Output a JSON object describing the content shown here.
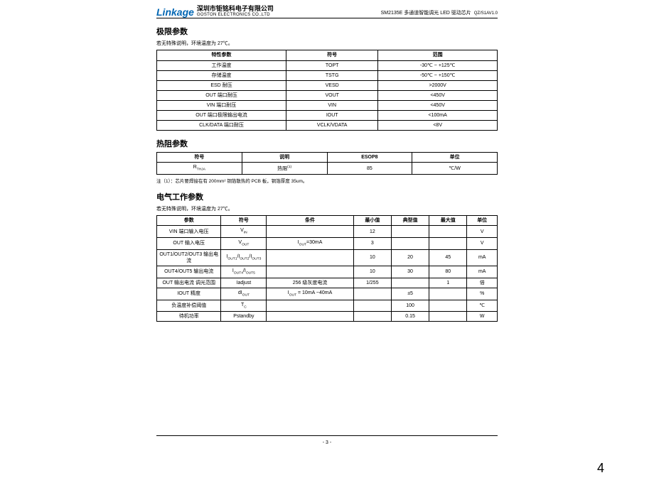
{
  "header": {
    "logo": "Linkage",
    "company_cn": "深圳市钜铭科电子有限公司",
    "company_en": "GOSTON ELECTRONICS CO.,LTD",
    "product": "SM2135E 多通道智能调光 LED 驱动芯片",
    "docno": "QZ/S1AV1.0"
  },
  "section1": {
    "title": "极限参数",
    "note": "若无特殊说明，环境温度为 27℃。",
    "headers": [
      "特性参数",
      "符号",
      "范围"
    ],
    "rows": [
      [
        "工作温度",
        "TOPT",
        "-30℃ ~ +125℃"
      ],
      [
        "存储温度",
        "TSTG",
        "-50℃ ~ +150℃"
      ],
      [
        "ESD 耐压",
        "VESD",
        ">2000V"
      ],
      [
        "OUT 端口耐压",
        "VOUT",
        "<450V"
      ],
      [
        "VIN 端口耐压",
        "VIN",
        "<450V"
      ],
      [
        "OUT 端口极限输出电流",
        "IOUT",
        "<100mA"
      ],
      [
        "CLK/DATA 端口耐压",
        "VCLK/VDATA",
        "<8V"
      ]
    ]
  },
  "section2": {
    "title": "热阻参数",
    "headers": [
      "符号",
      "说明",
      "ESOP8",
      "单位"
    ],
    "rows": [
      [
        "RTHJA",
        "热阻(1)",
        "85",
        "℃/W"
      ]
    ],
    "footnote": "注（1）：芯片要焊接在有 200mm² 铜箔散热的 PCB 板，铜箔厚度 35um。"
  },
  "section3": {
    "title": "电气工作参数",
    "note": "若无特殊说明，环境温度为 27℃。",
    "headers": [
      "参数",
      "符号",
      "条件",
      "最小值",
      "典型值",
      "最大值",
      "单位"
    ],
    "rows": [
      {
        "param": "VIN 端口输入电压",
        "sym": "V<sub>IN</sub>",
        "cond": "",
        "min": "12",
        "typ": "",
        "max": "",
        "unit": "V"
      },
      {
        "param": "OUT 输入电压",
        "sym": "V<sub>OUT</sub>",
        "cond": "I<sub>OUT</sub>=30mA",
        "min": "3",
        "typ": "",
        "max": "",
        "unit": "V"
      },
      {
        "param": "OUT1/OUT2/OUT3 输出电流",
        "sym": "I<sub>OUT1</sub>/I<sub>OUT2</sub>/I<sub>OUT3</sub>",
        "cond": "",
        "min": "10",
        "typ": "20",
        "max": "45",
        "unit": "mA"
      },
      {
        "param": "OUT4/OUT5 输出电流",
        "sym": "I<sub>OUT4</sub>/I<sub>OUT5</sub>",
        "cond": "",
        "min": "10",
        "typ": "30",
        "max": "80",
        "unit": "mA"
      },
      {
        "param": "OUT 输出电流 调光范围",
        "sym": "Iadjust",
        "cond": "256 级灰度电流",
        "min": "1/255",
        "typ": "",
        "max": "1",
        "unit": "倍"
      },
      {
        "param": "IOUT 精度",
        "sym": "dI<sub>OUT</sub>",
        "cond": "I<sub>OUT</sub> = 10mA ~40mA",
        "min": "",
        "typ": "±5",
        "max": "",
        "unit": "%"
      },
      {
        "param": "负温度补偿阈值",
        "sym": "T<sub>C</sub>",
        "cond": "",
        "min": "",
        "typ": "100",
        "max": "",
        "unit": "℃"
      },
      {
        "param": "待机功率",
        "sym": "Pstandby",
        "cond": "",
        "min": "",
        "typ": "0.15",
        "max": "",
        "unit": "W"
      }
    ]
  },
  "footer": {
    "page_center": "- 3 -",
    "page_corner": "4"
  }
}
